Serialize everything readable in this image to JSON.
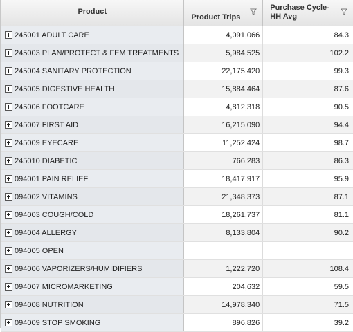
{
  "header": {
    "product": "Product",
    "trips": "Product Trips",
    "cycle_line1": "Purchase Cycle-",
    "cycle_line2": "HH Avg",
    "filter_icon": "filter-icon"
  },
  "rows": [
    {
      "product": "245001 ADULT CARE",
      "trips": "4,091,066",
      "cycle": "84.3"
    },
    {
      "product": "245003 PLAN/PROTECT & FEM TREATMENTS",
      "trips": "5,984,525",
      "cycle": "102.2"
    },
    {
      "product": "245004 SANITARY PROTECTION",
      "trips": "22,175,420",
      "cycle": "99.3"
    },
    {
      "product": "245005 DIGESTIVE HEALTH",
      "trips": "15,884,464",
      "cycle": "87.6"
    },
    {
      "product": "245006 FOOTCARE",
      "trips": "4,812,318",
      "cycle": "90.5"
    },
    {
      "product": "245007 FIRST AID",
      "trips": "16,215,090",
      "cycle": "94.4"
    },
    {
      "product": "245009 EYECARE",
      "trips": "11,252,424",
      "cycle": "98.7"
    },
    {
      "product": "245010 DIABETIC",
      "trips": "766,283",
      "cycle": "86.3"
    },
    {
      "product": "094001 PAIN RELIEF",
      "trips": "18,417,917",
      "cycle": "95.9"
    },
    {
      "product": "094002 VITAMINS",
      "trips": "21,348,373",
      "cycle": "87.1"
    },
    {
      "product": "094003 COUGH/COLD",
      "trips": "18,261,737",
      "cycle": "81.1"
    },
    {
      "product": "094004 ALLERGY",
      "trips": "8,133,804",
      "cycle": "90.2"
    },
    {
      "product": "094005 OPEN",
      "trips": "",
      "cycle": ""
    },
    {
      "product": "094006 VAPORIZERS/HUMIDIFIERS",
      "trips": "1,222,720",
      "cycle": "108.4"
    },
    {
      "product": "094007 MICROMARKETING",
      "trips": "204,632",
      "cycle": "59.5"
    },
    {
      "product": "094008 NUTRITION",
      "trips": "14,978,340",
      "cycle": "71.5"
    },
    {
      "product": "094009 STOP SMOKING",
      "trips": "896,826",
      "cycle": "39.2"
    }
  ]
}
